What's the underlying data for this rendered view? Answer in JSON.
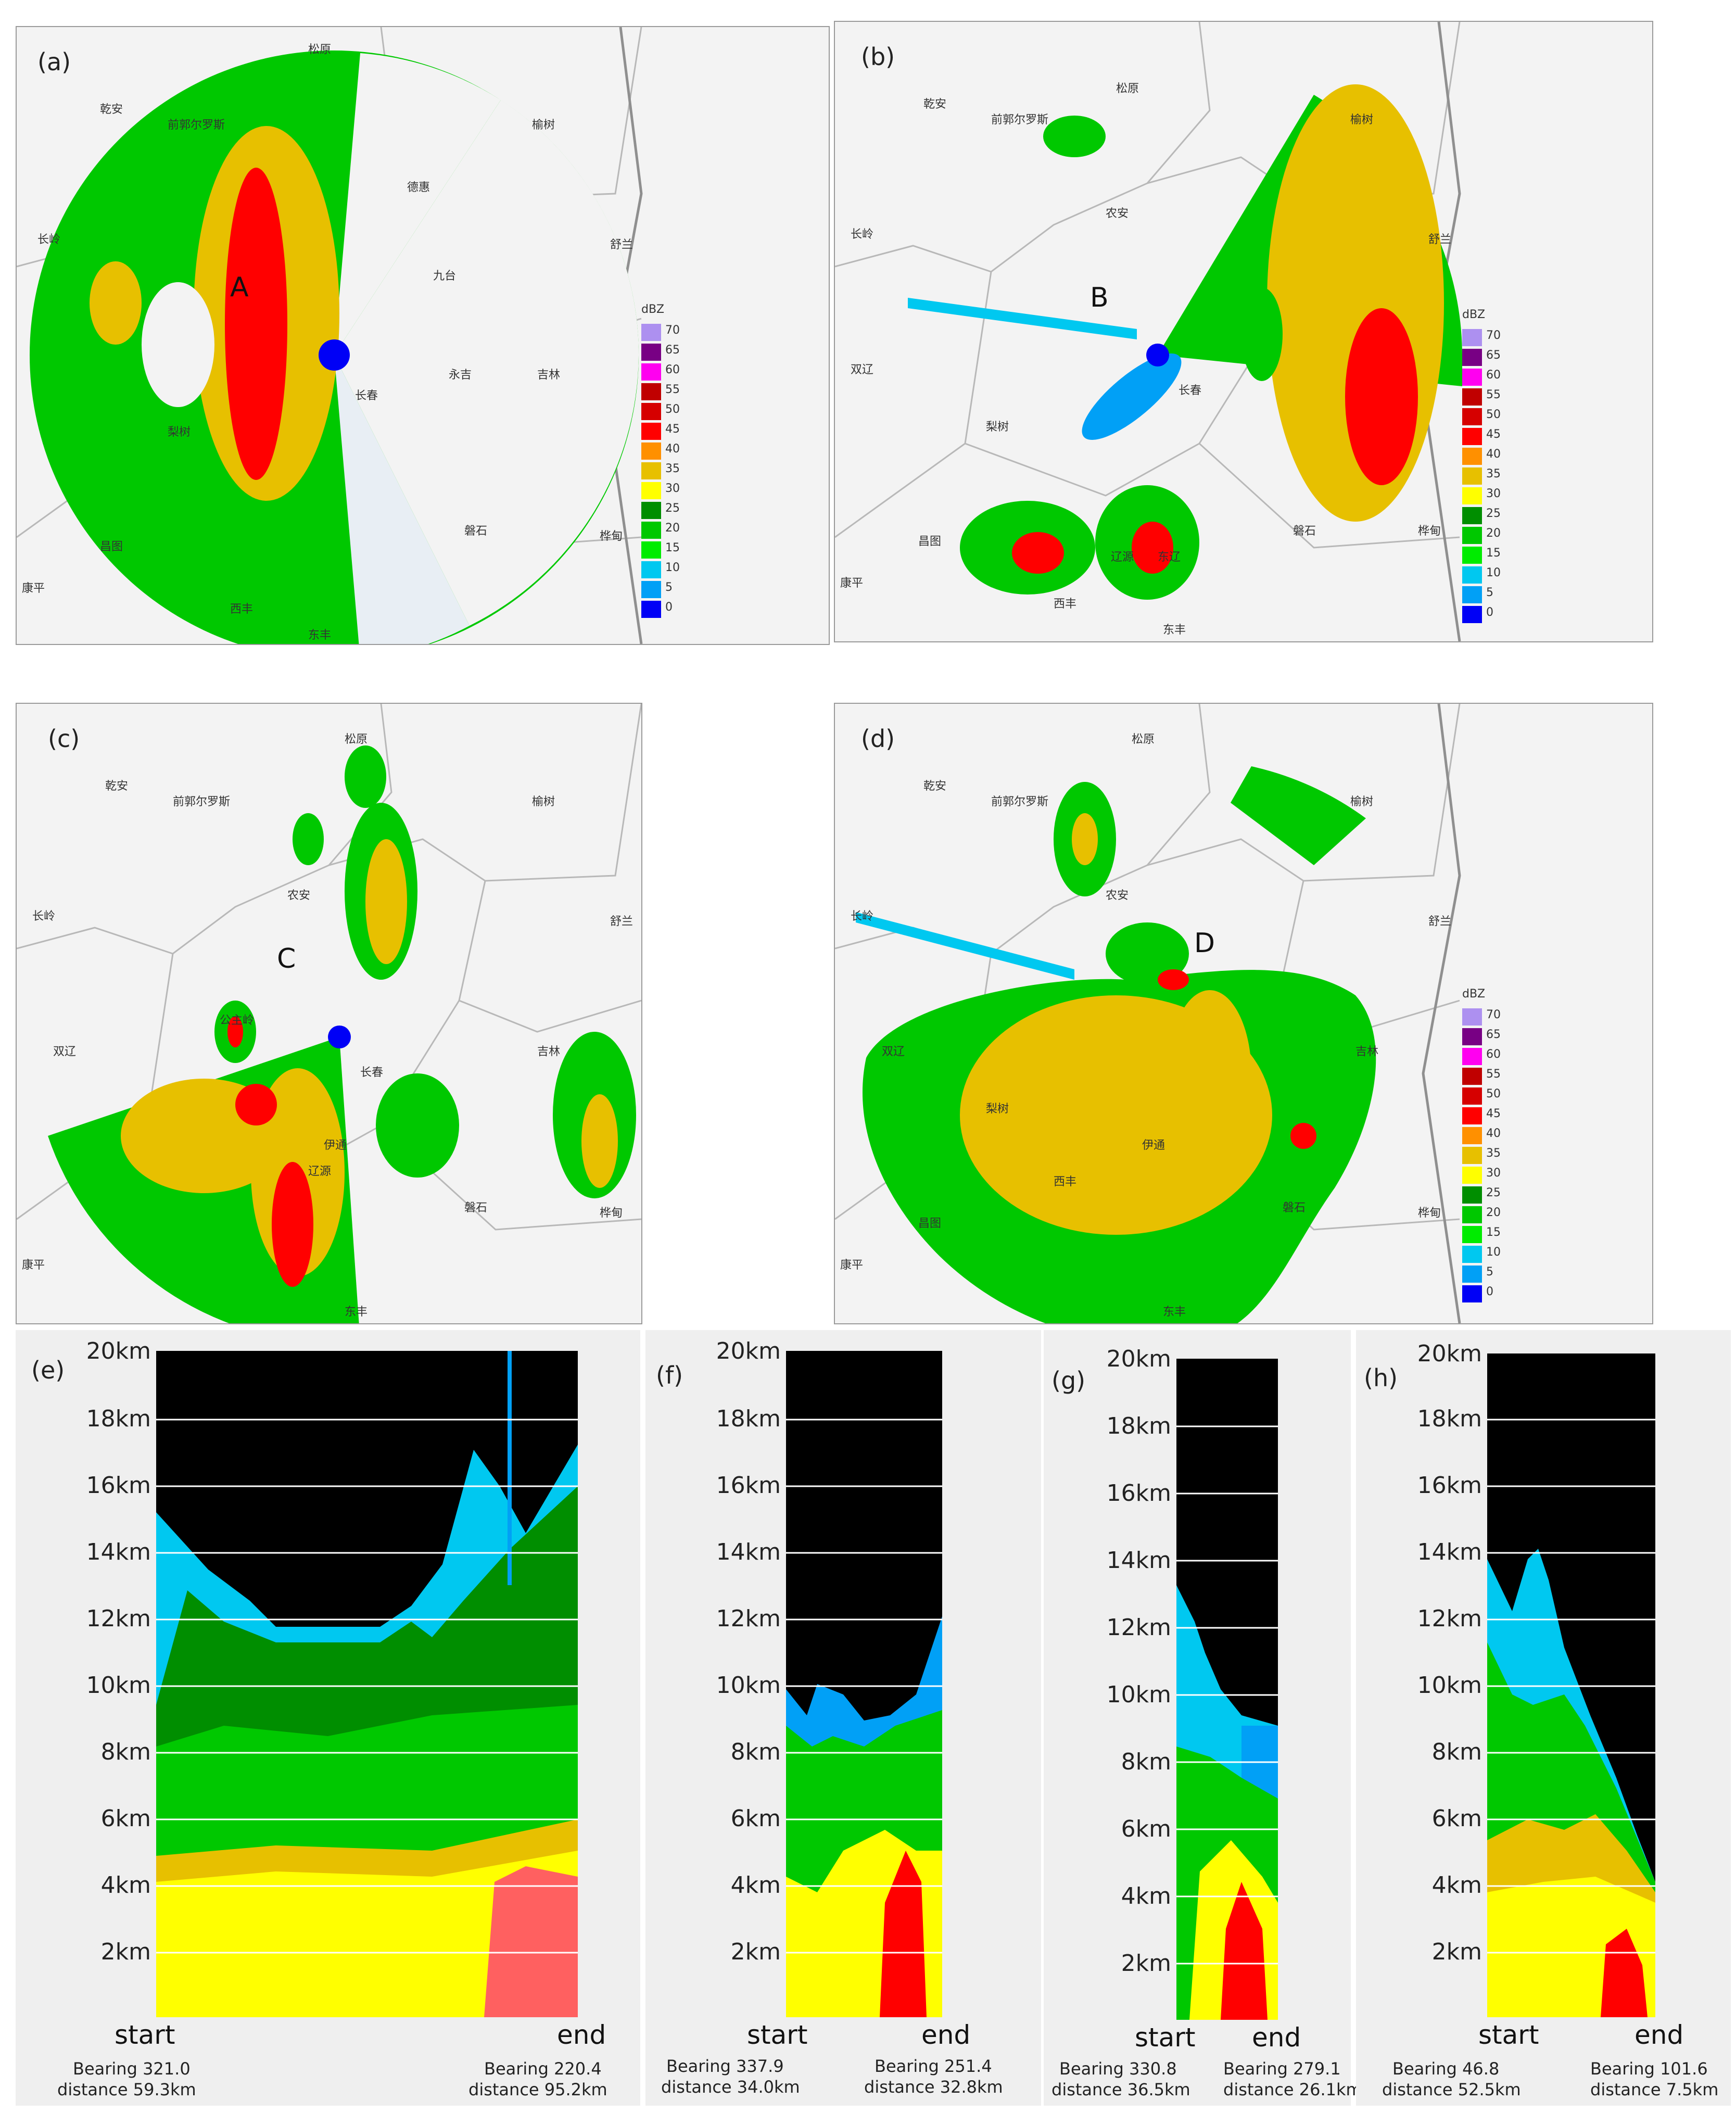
{
  "map_panels": [
    {
      "label": "(a)",
      "marker": "A",
      "cities": [
        "松原",
        "乾安",
        "前郭尔罗斯",
        "榆树",
        "长岭",
        "德惠",
        "九台",
        "永吉",
        "吉林",
        "长春",
        "磐石",
        "梨树",
        "昌图",
        "西丰",
        "东丰",
        "康平",
        "舒兰",
        "桦甸"
      ]
    },
    {
      "label": "(b)",
      "marker": "B",
      "cities": [
        "松原",
        "乾安",
        "前郭尔罗斯",
        "榆树",
        "长岭",
        "农安",
        "舒兰",
        "双辽",
        "长春",
        "梨树",
        "磐石",
        "桦甸",
        "昌图",
        "西丰",
        "辽源",
        "东辽",
        "东丰",
        "康平"
      ]
    },
    {
      "label": "(c)",
      "marker": "C",
      "cities": [
        "松原",
        "乾安",
        "前郭尔罗斯",
        "榆树",
        "长岭",
        "农安",
        "舒兰",
        "公主岭",
        "双辽",
        "长春",
        "吉林",
        "桦甸",
        "磐石",
        "辽源",
        "伊通",
        "康平",
        "东丰"
      ]
    },
    {
      "label": "(d)",
      "marker": "D",
      "cities": [
        "松原",
        "乾安",
        "前郭尔罗斯",
        "榆树",
        "长岭",
        "农安",
        "舒兰",
        "双辽",
        "吉林",
        "梨树",
        "伊通",
        "西丰",
        "磐石",
        "桦甸",
        "昌图",
        "康平",
        "东丰"
      ]
    }
  ],
  "legend": {
    "unit": "dBZ",
    "levels": [
      "70",
      "65",
      "60",
      "55",
      "50",
      "45",
      "40",
      "35",
      "30",
      "25",
      "20",
      "15",
      "10",
      "5",
      "0"
    ],
    "colors": [
      "#ad90f0",
      "#780084",
      "#ff00f0",
      "#c00000",
      "#d60000",
      "#ff0000",
      "#ff9000",
      "#e7c000",
      "#ffff00",
      "#008e00",
      "#00c800",
      "#00ec00",
      "#00c8f0",
      "#01a0f6",
      "#0000f6"
    ]
  },
  "vcs_panels": [
    {
      "label": "(e)",
      "heights": [
        "20km",
        "18km",
        "16km",
        "14km",
        "12km",
        "10km",
        "8km",
        "6km",
        "4km",
        "2km"
      ],
      "start": "start",
      "end": "end",
      "start_bearing": "Bearing 321.0",
      "start_distance": "distance 59.3km",
      "end_bearing": "Bearing 220.4",
      "end_distance": "distance 95.2km"
    },
    {
      "label": "(f)",
      "heights": [
        "20km",
        "18km",
        "16km",
        "14km",
        "12km",
        "10km",
        "8km",
        "6km",
        "4km",
        "2km"
      ],
      "start": "start",
      "end": "end",
      "start_bearing": "Bearing 337.9",
      "start_distance": "distance 34.0km",
      "end_bearing": "Bearing 251.4",
      "end_distance": "distance 32.8km"
    },
    {
      "label": "(g)",
      "heights": [
        "20km",
        "18km",
        "16km",
        "14km",
        "12km",
        "10km",
        "8km",
        "6km",
        "4km",
        "2km"
      ],
      "start": "start",
      "end": "end",
      "start_bearing": "Bearing 330.8",
      "start_distance": "distance 36.5km",
      "end_bearing": "Bearing 279.1",
      "end_distance": "distance 26.1km"
    },
    {
      "label": "(h)",
      "heights": [
        "20km",
        "18km",
        "16km",
        "14km",
        "12km",
        "10km",
        "8km",
        "6km",
        "4km",
        "2km"
      ],
      "start": "start",
      "end": "end",
      "start_bearing": "Bearing 46.8",
      "start_distance": "distance 52.5km",
      "end_bearing": "Bearing 101.6",
      "end_distance": "distance 7.5km"
    }
  ]
}
